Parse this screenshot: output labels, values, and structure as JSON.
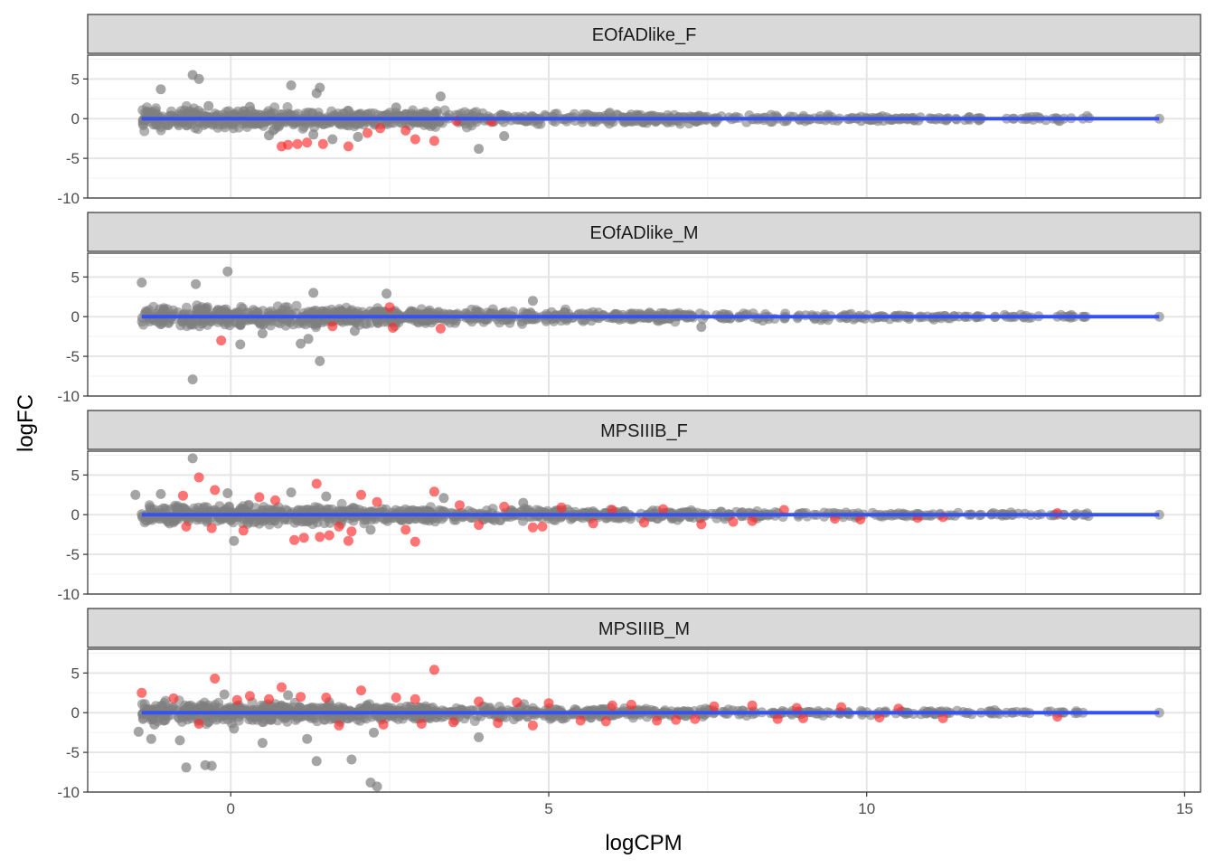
{
  "chart_data": {
    "type": "scatter",
    "title": "",
    "xlabel": "logCPM",
    "ylabel": "logFC",
    "xlim": [
      -2.25,
      15.25
    ],
    "ylim": [
      -10,
      8
    ],
    "x_ticks": [
      0,
      5,
      10,
      15
    ],
    "x_tick_labels": [
      "0",
      "5",
      "10",
      "15"
    ],
    "y_ticks": [
      5,
      0,
      -5,
      -10
    ],
    "y_tick_labels": [
      "5",
      "0",
      "-5",
      "-10"
    ],
    "grid": true,
    "legend": "none",
    "point_colors": {
      "not_significant": "#7f7f7f",
      "significant": "#ff2a2a"
    },
    "trend_color": "#3552f0",
    "trend_line": {
      "x": [
        -1.4,
        14.6
      ],
      "y": [
        0,
        0
      ]
    },
    "panels": [
      {
        "name": "EOfADlike_F",
        "significant_points": [
          [
            0.9,
            -3.3
          ],
          [
            1.05,
            -3.2
          ],
          [
            1.2,
            -3.0
          ],
          [
            1.45,
            -3.2
          ],
          [
            1.85,
            -3.5
          ],
          [
            2.15,
            -1.8
          ],
          [
            2.9,
            -2.6
          ],
          [
            3.2,
            -2.8
          ],
          [
            2.75,
            -1.5
          ],
          [
            0.8,
            -3.5
          ],
          [
            3.55,
            -0.3
          ],
          [
            4.1,
            -0.4
          ],
          [
            2.35,
            -1.2
          ]
        ],
        "outliers": [
          [
            -0.6,
            5.5
          ],
          [
            -0.5,
            5.0
          ],
          [
            -1.1,
            3.7
          ],
          [
            0.95,
            4.2
          ],
          [
            1.4,
            3.9
          ],
          [
            1.35,
            3.2
          ],
          [
            3.3,
            2.8
          ],
          [
            3.9,
            -3.8
          ],
          [
            1.6,
            -2.6
          ],
          [
            -0.35,
            1.6
          ],
          [
            0.3,
            1.5
          ],
          [
            2.0,
            -2.3
          ],
          [
            1.3,
            -2.0
          ],
          [
            4.3,
            -2.2
          ],
          [
            2.6,
            1.4
          ],
          [
            0.6,
            -2.1
          ]
        ]
      },
      {
        "name": "EOfADlike_M",
        "significant_points": [
          [
            -0.15,
            -3.0
          ],
          [
            2.55,
            -1.4
          ],
          [
            3.3,
            -1.5
          ],
          [
            1.6,
            -1.2
          ],
          [
            2.5,
            1.2
          ]
        ],
        "outliers": [
          [
            -1.4,
            4.3
          ],
          [
            -0.55,
            4.1
          ],
          [
            -0.05,
            5.7
          ],
          [
            -0.6,
            -7.9
          ],
          [
            1.4,
            -5.6
          ],
          [
            0.15,
            -3.5
          ],
          [
            1.1,
            -3.4
          ],
          [
            1.3,
            3.0
          ],
          [
            1.22,
            -2.8
          ],
          [
            2.45,
            2.9
          ],
          [
            4.75,
            2.0
          ],
          [
            7.4,
            -1.3
          ],
          [
            0.5,
            -2.1
          ],
          [
            1.95,
            -1.8
          ]
        ]
      },
      {
        "name": "MPSIIIB_F",
        "significant_points": [
          [
            -0.5,
            4.7
          ],
          [
            -0.75,
            2.4
          ],
          [
            -0.25,
            3.1
          ],
          [
            0.45,
            2.2
          ],
          [
            1.35,
            3.9
          ],
          [
            2.05,
            2.5
          ],
          [
            1.0,
            -3.2
          ],
          [
            1.15,
            -2.9
          ],
          [
            1.4,
            -2.8
          ],
          [
            1.55,
            -2.6
          ],
          [
            1.85,
            -3.3
          ],
          [
            2.9,
            -3.4
          ],
          [
            3.2,
            2.9
          ],
          [
            2.75,
            -1.9
          ],
          [
            1.7,
            -1.5
          ],
          [
            4.75,
            -1.6
          ],
          [
            5.2,
            0.9
          ],
          [
            6.0,
            0.6
          ],
          [
            6.5,
            -1.0
          ],
          [
            7.4,
            -1.2
          ],
          [
            8.2,
            -0.8
          ],
          [
            9.5,
            -0.5
          ],
          [
            10.8,
            -0.4
          ],
          [
            11.2,
            -0.3
          ],
          [
            13.0,
            0.2
          ],
          [
            0.2,
            -2.0
          ],
          [
            -0.7,
            -1.5
          ],
          [
            2.3,
            1.6
          ],
          [
            3.9,
            -1.3
          ],
          [
            4.3,
            1.0
          ],
          [
            5.7,
            -1.1
          ],
          [
            6.8,
            0.7
          ],
          [
            8.7,
            0.6
          ],
          [
            9.9,
            -0.6
          ],
          [
            0.7,
            1.8
          ],
          [
            -0.3,
            -1.7
          ],
          [
            1.9,
            -2.1
          ],
          [
            3.6,
            1.2
          ],
          [
            4.9,
            -1.5
          ],
          [
            7.9,
            -0.9
          ]
        ],
        "outliers": [
          [
            -0.6,
            7.1
          ],
          [
            -1.5,
            2.5
          ],
          [
            -1.1,
            2.6
          ],
          [
            0.95,
            2.8
          ],
          [
            3.35,
            2.1
          ],
          [
            0.05,
            -3.3
          ],
          [
            2.2,
            -1.9
          ],
          [
            -0.05,
            2.7
          ],
          [
            1.5,
            2.3
          ],
          [
            4.6,
            1.5
          ]
        ]
      },
      {
        "name": "MPSIIIB_M",
        "significant_points": [
          [
            -1.4,
            2.5
          ],
          [
            -0.25,
            4.3
          ],
          [
            0.8,
            3.2
          ],
          [
            3.2,
            5.4
          ],
          [
            2.05,
            2.8
          ],
          [
            1.1,
            2.0
          ],
          [
            0.3,
            2.1
          ],
          [
            -0.9,
            1.8
          ],
          [
            2.6,
            1.9
          ],
          [
            4.75,
            -1.6
          ],
          [
            1.7,
            -1.6
          ],
          [
            3.5,
            -1.2
          ],
          [
            5.5,
            -1.0
          ],
          [
            6.3,
            1.0
          ],
          [
            7.0,
            -0.9
          ],
          [
            8.2,
            0.9
          ],
          [
            9.0,
            -0.7
          ],
          [
            10.5,
            0.5
          ],
          [
            11.2,
            -0.7
          ],
          [
            13.0,
            -0.5
          ],
          [
            0.6,
            1.7
          ],
          [
            1.5,
            1.9
          ],
          [
            2.4,
            -1.5
          ],
          [
            3.9,
            1.4
          ],
          [
            4.2,
            -1.3
          ],
          [
            5.0,
            1.2
          ],
          [
            5.9,
            -1.1
          ],
          [
            6.7,
            -1.0
          ],
          [
            7.6,
            0.8
          ],
          [
            8.6,
            -0.8
          ],
          [
            9.6,
            0.7
          ],
          [
            10.2,
            -0.6
          ],
          [
            -0.5,
            -1.4
          ],
          [
            0.1,
            1.6
          ],
          [
            2.9,
            1.7
          ],
          [
            4.5,
            1.3
          ],
          [
            3.0,
            -1.4
          ],
          [
            6.0,
            0.9
          ],
          [
            7.3,
            -0.8
          ],
          [
            8.9,
            0.6
          ]
        ],
        "outliers": [
          [
            -0.7,
            -6.9
          ],
          [
            -0.4,
            -6.6
          ],
          [
            -0.3,
            -6.7
          ],
          [
            1.35,
            -6.1
          ],
          [
            1.9,
            -5.9
          ],
          [
            2.2,
            -8.8
          ],
          [
            2.3,
            -9.3
          ],
          [
            -1.45,
            -2.4
          ],
          [
            -1.2,
            -1.5
          ],
          [
            -1.25,
            -3.3
          ],
          [
            -0.8,
            -3.5
          ],
          [
            0.5,
            -3.8
          ],
          [
            1.2,
            -3.3
          ],
          [
            3.9,
            -3.1
          ],
          [
            0.05,
            -2.0
          ],
          [
            2.25,
            -2.5
          ],
          [
            -0.1,
            2.3
          ],
          [
            0.9,
            2.2
          ]
        ]
      }
    ]
  }
}
